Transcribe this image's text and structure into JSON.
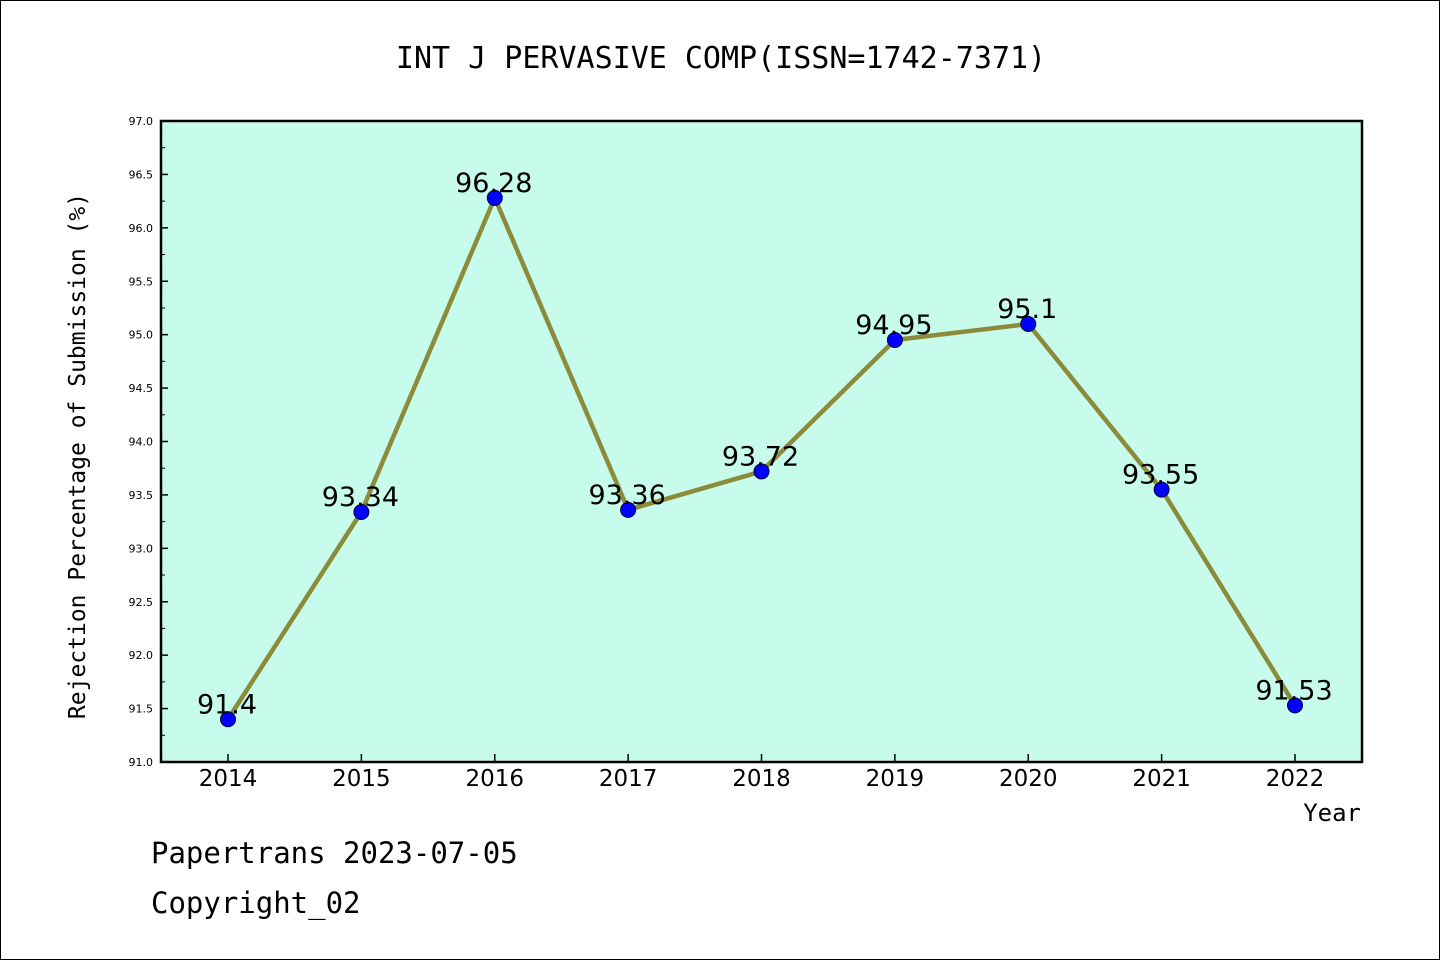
{
  "chart_data": {
    "type": "line",
    "title": "INT J PERVASIVE COMP(ISSN=1742-7371)",
    "xlabel": "Year",
    "ylabel": "Rejection Percentage of Submission (%)",
    "categories": [
      "2014",
      "2015",
      "2016",
      "2017",
      "2018",
      "2019",
      "2020",
      "2021",
      "2022"
    ],
    "values": [
      91.4,
      93.34,
      96.28,
      93.36,
      93.72,
      94.95,
      95.1,
      93.55,
      91.53
    ],
    "data_labels": [
      "91.4",
      "93.34",
      "96.28",
      "93.36",
      "93.72",
      "94.95",
      "95.1",
      "93.55",
      "91.53"
    ],
    "ylim": [
      91.0,
      97.0
    ],
    "yticks": [
      "91.0",
      "91.5",
      "92.0",
      "92.5",
      "93.0",
      "93.5",
      "94.0",
      "94.5",
      "95.0",
      "95.5",
      "96.0",
      "96.5",
      "97.0"
    ],
    "grid": false,
    "legend": "none",
    "colors": {
      "plot_background": "#c7fcec",
      "line": "#8b8b3a",
      "marker": "#0000ff"
    }
  },
  "footer": {
    "source": "Papertrans 2023-07-05",
    "copyright": "Copyright_02"
  }
}
